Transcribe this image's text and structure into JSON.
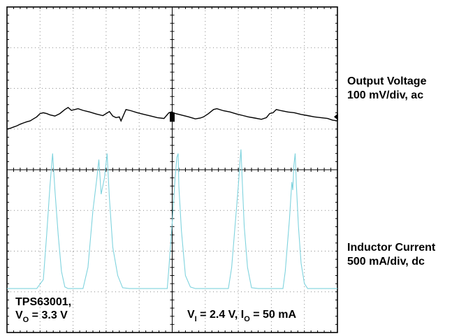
{
  "chart_data": {
    "type": "line",
    "grid": true,
    "divisions": {
      "x": 10,
      "y": 8
    },
    "series": [
      {
        "name": "Output Voltage",
        "scale": "100 mV/div, ac",
        "color": "#000000",
        "points": [
          [
            0.0,
            5.0
          ],
          [
            0.1,
            5.02
          ],
          [
            0.2,
            5.05
          ],
          [
            0.3,
            5.08
          ],
          [
            0.4,
            5.12
          ],
          [
            0.5,
            5.15
          ],
          [
            0.6,
            5.18
          ],
          [
            0.7,
            5.2
          ],
          [
            0.8,
            5.25
          ],
          [
            0.9,
            5.3
          ],
          [
            1.0,
            5.38
          ],
          [
            1.1,
            5.4
          ],
          [
            1.2,
            5.38
          ],
          [
            1.3,
            5.35
          ],
          [
            1.45,
            5.32
          ],
          [
            1.6,
            5.38
          ],
          [
            1.75,
            5.48
          ],
          [
            1.85,
            5.53
          ],
          [
            1.95,
            5.46
          ],
          [
            2.05,
            5.48
          ],
          [
            2.15,
            5.5
          ],
          [
            2.3,
            5.46
          ],
          [
            2.5,
            5.42
          ],
          [
            2.7,
            5.37
          ],
          [
            2.9,
            5.33
          ],
          [
            3.0,
            5.38
          ],
          [
            3.1,
            5.43
          ],
          [
            3.2,
            5.32
          ],
          [
            3.3,
            5.28
          ],
          [
            3.4,
            5.3
          ],
          [
            3.45,
            5.2
          ],
          [
            3.6,
            5.48
          ],
          [
            3.75,
            5.45
          ],
          [
            3.95,
            5.4
          ],
          [
            4.15,
            5.36
          ],
          [
            4.35,
            5.32
          ],
          [
            4.55,
            5.28
          ],
          [
            4.75,
            5.26
          ],
          [
            4.9,
            5.4
          ],
          [
            4.98,
            5.42
          ],
          [
            5.1,
            5.38
          ],
          [
            5.3,
            5.34
          ],
          [
            5.5,
            5.3
          ],
          [
            5.7,
            5.25
          ],
          [
            5.85,
            5.27
          ],
          [
            5.95,
            5.3
          ],
          [
            6.1,
            5.38
          ],
          [
            6.25,
            5.48
          ],
          [
            6.35,
            5.5
          ],
          [
            6.55,
            5.45
          ],
          [
            6.75,
            5.42
          ],
          [
            6.95,
            5.37
          ],
          [
            7.15,
            5.33
          ],
          [
            7.3,
            5.3
          ],
          [
            7.5,
            5.27
          ],
          [
            7.7,
            5.24
          ],
          [
            7.85,
            5.28
          ],
          [
            7.95,
            5.38
          ],
          [
            8.05,
            5.4
          ],
          [
            8.15,
            5.48
          ],
          [
            8.3,
            5.45
          ],
          [
            8.5,
            5.42
          ],
          [
            8.7,
            5.4
          ],
          [
            8.9,
            5.36
          ],
          [
            9.1,
            5.33
          ],
          [
            9.3,
            5.3
          ],
          [
            9.5,
            5.28
          ],
          [
            9.7,
            5.26
          ],
          [
            9.85,
            5.22
          ],
          [
            10.0,
            5.2
          ]
        ]
      },
      {
        "name": "Inductor Current",
        "scale": "500 mA/div, dc",
        "color": "#7fd3de",
        "points": [
          [
            0.0,
            1.08
          ],
          [
            0.9,
            1.08
          ],
          [
            1.1,
            1.3
          ],
          [
            1.2,
            2.4
          ],
          [
            1.3,
            3.6
          ],
          [
            1.38,
            4.4
          ],
          [
            1.45,
            3.5
          ],
          [
            1.55,
            2.4
          ],
          [
            1.65,
            1.5
          ],
          [
            1.75,
            1.12
          ],
          [
            1.85,
            1.08
          ],
          [
            2.3,
            1.08
          ],
          [
            2.45,
            1.6
          ],
          [
            2.6,
            3.0
          ],
          [
            2.72,
            3.8
          ],
          [
            2.78,
            4.25
          ],
          [
            2.85,
            3.4
          ],
          [
            2.95,
            3.8
          ],
          [
            3.03,
            4.4
          ],
          [
            3.1,
            3.3
          ],
          [
            3.2,
            2.1
          ],
          [
            3.35,
            1.4
          ],
          [
            3.5,
            1.1
          ],
          [
            3.7,
            1.08
          ],
          [
            4.85,
            1.08
          ],
          [
            4.9,
            1.6
          ],
          [
            5.0,
            2.7
          ],
          [
            5.08,
            3.7
          ],
          [
            5.14,
            4.3
          ],
          [
            5.18,
            4.4
          ],
          [
            5.2,
            3.6
          ],
          [
            5.28,
            2.5
          ],
          [
            5.4,
            1.4
          ],
          [
            5.55,
            1.12
          ],
          [
            5.7,
            1.08
          ],
          [
            6.7,
            1.08
          ],
          [
            6.8,
            1.6
          ],
          [
            6.92,
            2.8
          ],
          [
            7.0,
            3.6
          ],
          [
            7.05,
            4.2
          ],
          [
            7.08,
            4.5
          ],
          [
            7.12,
            3.7
          ],
          [
            7.18,
            2.6
          ],
          [
            7.28,
            1.6
          ],
          [
            7.4,
            1.1
          ],
          [
            7.6,
            1.08
          ],
          [
            8.35,
            1.08
          ],
          [
            8.42,
            1.5
          ],
          [
            8.55,
            2.8
          ],
          [
            8.62,
            3.7
          ],
          [
            8.65,
            3.5
          ],
          [
            8.68,
            4.1
          ],
          [
            8.72,
            4.4
          ],
          [
            8.76,
            3.6
          ],
          [
            8.82,
            2.6
          ],
          [
            8.9,
            1.7
          ],
          [
            9.0,
            1.2
          ],
          [
            9.1,
            1.08
          ],
          [
            10.0,
            1.08
          ]
        ]
      }
    ],
    "labels": {
      "right1_line1": "Output Voltage",
      "right1_line2": "100 mV/div, ac",
      "right2_line1": "Inductor Current",
      "right2_line2": "500 mA/div, dc",
      "bl_line1": "TPS63001,",
      "bl_line2_a": "V",
      "bl_line2_sub": "O",
      "bl_line2_b": " = 3.3 V",
      "br_a": "V",
      "br_sub1": "I",
      "br_b": " = 2.4 V, I",
      "br_sub2": "O",
      "br_c": " = 50 mA"
    }
  }
}
